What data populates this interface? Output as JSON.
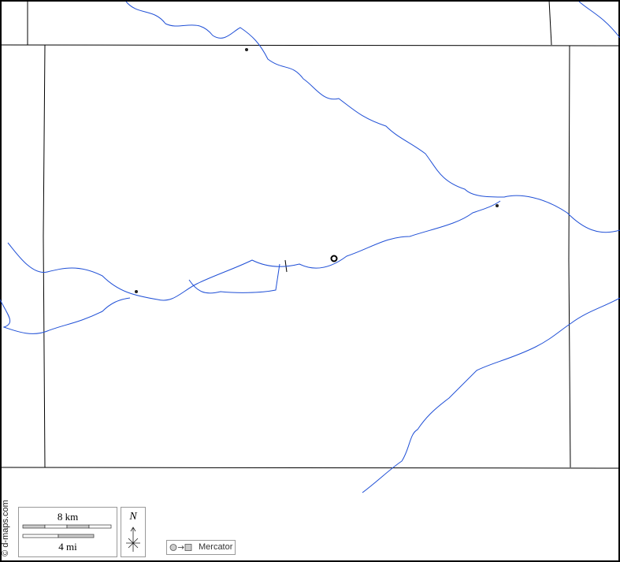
{
  "credit": "© d-maps.com",
  "scale": {
    "km_label": "8 km",
    "mi_label": "4 mi"
  },
  "north": {
    "label": "N"
  },
  "projection": {
    "label": "Mercator",
    "icon": "circle-to-square-icon"
  },
  "colors": {
    "river": "#1f4fd6",
    "border": "#000000"
  }
}
